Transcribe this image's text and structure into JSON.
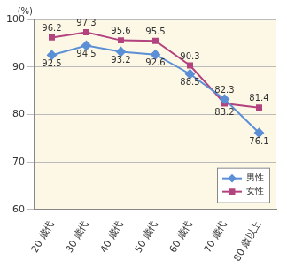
{
  "chart_data": {
    "type": "line",
    "ylabel": "(%)",
    "categories": [
      "20 歳代",
      "30 歳代",
      "40 歳代",
      "50 歳代",
      "60 歳代",
      "70 歳代",
      "80 歳以上"
    ],
    "series": [
      {
        "name": "男性",
        "color": "#5b8fd6",
        "marker": "diamond",
        "values": [
          92.5,
          94.5,
          93.2,
          92.6,
          88.5,
          83.2,
          76.1
        ]
      },
      {
        "name": "女性",
        "color": "#b3437e",
        "marker": "square",
        "values": [
          96.2,
          97.3,
          95.6,
          95.5,
          90.3,
          82.3,
          81.4
        ]
      }
    ],
    "ylim": [
      60,
      100
    ],
    "yticks": [
      60,
      70,
      80,
      90,
      100
    ],
    "grid": true,
    "legend": "lower right",
    "data_labels": true
  }
}
